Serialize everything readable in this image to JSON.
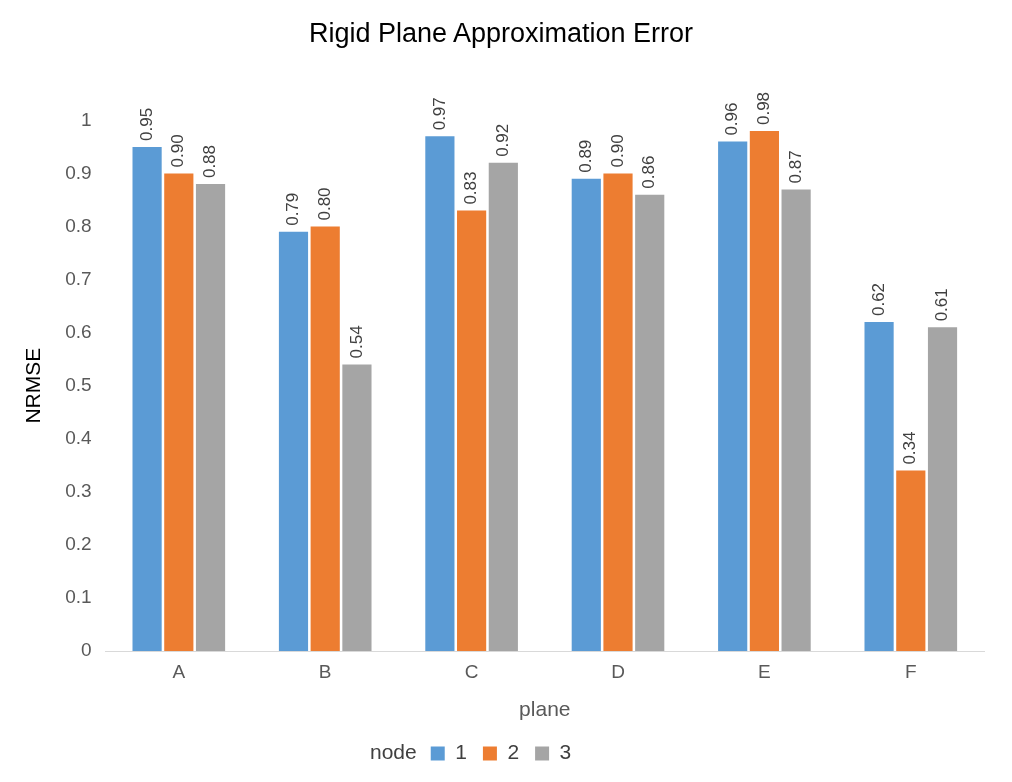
{
  "chart_data": {
    "type": "bar",
    "title": "Rigid Plane Approximation Error",
    "xlabel": "plane",
    "ylabel": "NRMSE",
    "legend_title": "node",
    "categories": [
      "A",
      "B",
      "C",
      "D",
      "E",
      "F"
    ],
    "series": [
      {
        "name": "1",
        "color": "#5b9bd5",
        "values": [
          0.95,
          0.79,
          0.97,
          0.89,
          0.96,
          0.62
        ],
        "value_labels": [
          "0.95",
          "0.79",
          "0.97",
          "0.89",
          "0.96",
          "0.62"
        ]
      },
      {
        "name": "2",
        "color": "#ed7d31",
        "values": [
          0.9,
          0.8,
          0.83,
          0.9,
          0.98,
          0.34
        ],
        "value_labels": [
          "0.90",
          "0.80",
          "0.83",
          "0.90",
          "0.98",
          "0.34"
        ]
      },
      {
        "name": "3",
        "color": "#a5a5a5",
        "values": [
          0.88,
          0.54,
          0.92,
          0.86,
          0.87,
          0.61
        ],
        "value_labels": [
          "0.88",
          "0.54",
          "0.92",
          "0.86",
          "0.87",
          "0.61"
        ]
      }
    ],
    "ylim": [
      0,
      1
    ],
    "yticks": [
      0,
      0.1,
      0.2,
      0.3,
      0.4,
      0.5,
      0.6,
      0.7,
      0.8,
      0.9,
      1
    ],
    "grid": false,
    "legend": "bottom"
  }
}
